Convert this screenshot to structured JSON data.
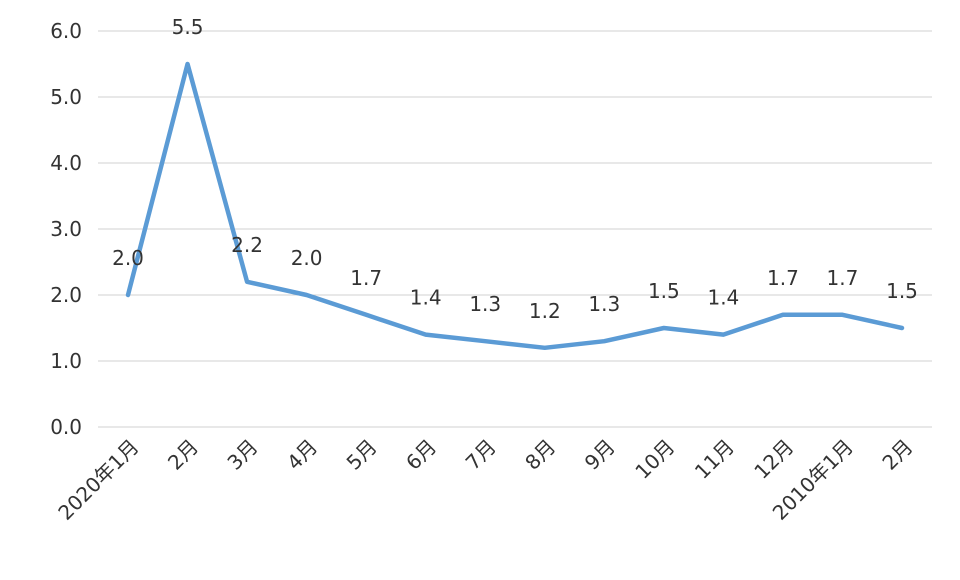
{
  "chart_data": {
    "type": "line",
    "title": "",
    "xlabel": "",
    "ylabel": "",
    "categories": [
      "2020年1月",
      "2月",
      "3月",
      "4月",
      "5月",
      "6月",
      "7月",
      "8月",
      "9月",
      "10月",
      "11月",
      "12月",
      "2010年1月",
      "2月"
    ],
    "series": [
      {
        "values": [
          2.0,
          5.5,
          2.2,
          2.0,
          1.7,
          1.4,
          1.3,
          1.2,
          1.3,
          1.5,
          1.4,
          1.7,
          1.7,
          1.5
        ],
        "labels": [
          "2.0",
          "5.5",
          "2.2",
          "2.0",
          "1.7",
          "1.4",
          "1.3",
          "1.2",
          "1.3",
          "1.5",
          "1.4",
          "1.7",
          "1.7",
          "1.5"
        ],
        "color": "#5b9bd5"
      }
    ],
    "ylim": [
      0,
      6
    ],
    "yticks": [
      "0.0",
      "1.0",
      "2.0",
      "3.0",
      "4.0",
      "5.0",
      "6.0"
    ],
    "grid": true,
    "legend": "none",
    "gridline_color": "#d0d0d0"
  }
}
